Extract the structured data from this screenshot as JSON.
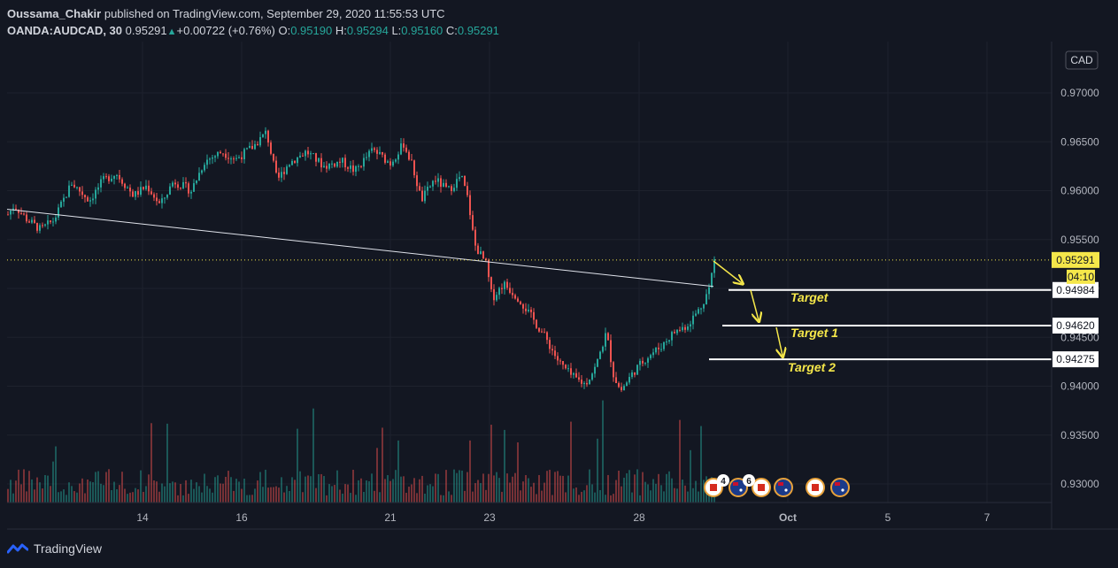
{
  "header": {
    "author": "Oussama_Chakir",
    "published": " published on TradingView.com, September 29, 2020 11:55:53 UTC",
    "symbol": "OANDA:AUDCAD, 30",
    "last": "0.95291",
    "change": "+0.00722 (+0.76%)",
    "o_label": "O:",
    "o_val": "0.95190",
    "h_label": "H:",
    "h_val": "0.95294",
    "l_label": "L:",
    "l_val": "0.95160",
    "c_label": "C:",
    "c_val": "0.95291"
  },
  "currency_badge": "CAD",
  "price_badge": "0.95291",
  "countdown_badge": "04:10",
  "target_badges": [
    "0.94984",
    "0.94620",
    "0.94275"
  ],
  "footer": {
    "brand": "TradingView"
  },
  "event_badges": [
    "4",
    "6"
  ],
  "colors": {
    "up": "#26a69a",
    "down": "#ef5350",
    "annotation": "#f5e74a",
    "background": "#131722"
  },
  "chart_data": {
    "type": "candlestick",
    "symbol": "OANDA:AUDCAD",
    "timeframe": "30",
    "ylim": [
      0.9288,
      0.9722
    ],
    "y_ticks": [
      "0.97000",
      "0.96500",
      "0.96000",
      "0.95500",
      "0.95000",
      "0.94500",
      "0.94000",
      "0.93500",
      "0.93000"
    ],
    "x_ticks": [
      "14",
      "16",
      "21",
      "23",
      "28",
      "Oct",
      "5",
      "7"
    ],
    "price_path": [
      [
        0,
        0.9565
      ],
      [
        15,
        0.9585
      ],
      [
        30,
        0.957
      ],
      [
        45,
        0.956
      ],
      [
        60,
        0.957
      ],
      [
        80,
        0.9608
      ],
      [
        100,
        0.959
      ],
      [
        115,
        0.961
      ],
      [
        130,
        0.9618
      ],
      [
        150,
        0.9595
      ],
      [
        165,
        0.9605
      ],
      [
        180,
        0.9585
      ],
      [
        195,
        0.961
      ],
      [
        215,
        0.96
      ],
      [
        230,
        0.963
      ],
      [
        250,
        0.964
      ],
      [
        265,
        0.9632
      ],
      [
        285,
        0.9645
      ],
      [
        300,
        0.966
      ],
      [
        312,
        0.961
      ],
      [
        325,
        0.9628
      ],
      [
        345,
        0.964
      ],
      [
        365,
        0.9625
      ],
      [
        385,
        0.963
      ],
      [
        400,
        0.962
      ],
      [
        420,
        0.9642
      ],
      [
        440,
        0.9628
      ],
      [
        455,
        0.9648
      ],
      [
        465,
        0.9625
      ],
      [
        475,
        0.959
      ],
      [
        490,
        0.9612
      ],
      [
        505,
        0.96
      ],
      [
        520,
        0.9615
      ],
      [
        528,
        0.959
      ],
      [
        535,
        0.9545
      ],
      [
        548,
        0.9525
      ],
      [
        555,
        0.949
      ],
      [
        568,
        0.9505
      ],
      [
        585,
        0.949
      ],
      [
        600,
        0.947
      ],
      [
        615,
        0.945
      ],
      [
        630,
        0.9425
      ],
      [
        645,
        0.941
      ],
      [
        660,
        0.9402
      ],
      [
        672,
        0.942
      ],
      [
        684,
        0.9455
      ],
      [
        692,
        0.9412
      ],
      [
        700,
        0.9395
      ],
      [
        715,
        0.9415
      ],
      [
        730,
        0.943
      ],
      [
        745,
        0.944
      ],
      [
        760,
        0.9455
      ],
      [
        775,
        0.9462
      ],
      [
        790,
        0.948
      ],
      [
        800,
        0.95
      ],
      [
        806,
        0.9529
      ]
    ],
    "last_price": 0.95291,
    "trendline": [
      [
        8,
        0.9581
      ],
      [
        806,
        0.9502
      ]
    ],
    "target_levels": [
      {
        "label": "Target",
        "price": 0.94984
      },
      {
        "label": "Target 1",
        "price": 0.9462
      },
      {
        "label": "Target 2",
        "price": 0.94275
      }
    ]
  }
}
